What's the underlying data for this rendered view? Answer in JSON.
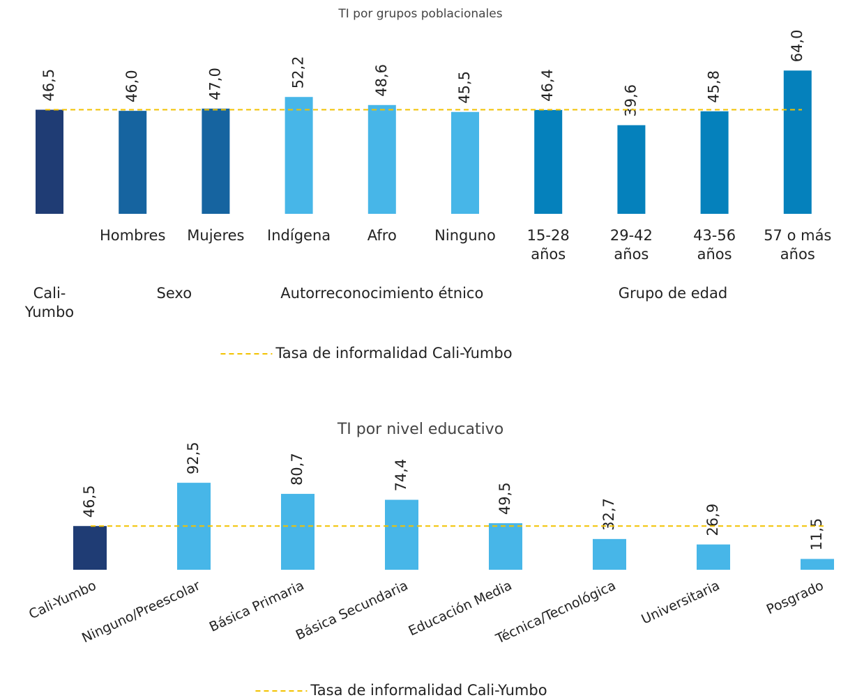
{
  "chart_data": [
    {
      "type": "bar",
      "title": "TI por grupos poblacionales",
      "categories": [
        null,
        "Hombres",
        "Mujeres",
        "Indígena",
        "Afro",
        "Ninguno",
        "15-28 años",
        "29-42 años",
        "43-56 años",
        "57 o más años"
      ],
      "groups": [
        {
          "label": "Cali-Yumbo",
          "span": 1
        },
        {
          "label": "Sexo",
          "span": 2
        },
        {
          "label": "Autorreconocimiento étnico",
          "span": 3
        },
        {
          "label": "Grupo de edad",
          "span": 4
        }
      ],
      "values": [
        46.5,
        46.0,
        47.0,
        52.2,
        48.6,
        45.5,
        46.4,
        39.6,
        45.8,
        64.0
      ],
      "value_labels": [
        "46,5",
        "46,0",
        "47,0",
        "52,2",
        "48,6",
        "45,5",
        "46,4",
        "39,6",
        "45,8",
        "64,0"
      ],
      "colors": [
        "#1f3c74",
        "#1664a0",
        "#1664a0",
        "#47b6e8",
        "#47b6e8",
        "#47b6e8",
        "#0581bc",
        "#0581bc",
        "#0581bc",
        "#0581bc"
      ],
      "reference_line": {
        "value": 46.5,
        "label": "Tasa de informalidad Cali-Yumbo",
        "color": "#f2c200"
      },
      "ylim": [
        0,
        70
      ]
    },
    {
      "type": "bar",
      "title": "TI por nivel educativo",
      "categories": [
        "Cali-Yumbo",
        "Ninguno/Preescolar",
        "Básica Primaria",
        "Básica Secundaria",
        "Educación Media",
        "Técnica/Tecnológica",
        "Universitaria",
        "Posgrado"
      ],
      "values": [
        46.5,
        92.5,
        80.7,
        74.4,
        49.5,
        32.7,
        26.9,
        11.5
      ],
      "value_labels": [
        "46,5",
        "92,5",
        "80,7",
        "74,4",
        "49,5",
        "32,7",
        "26,9",
        "11,5"
      ],
      "colors": [
        "#1f3c74",
        "#47b6e8",
        "#47b6e8",
        "#47b6e8",
        "#47b6e8",
        "#47b6e8",
        "#47b6e8",
        "#47b6e8"
      ],
      "reference_line": {
        "value": 46.5,
        "label": "Tasa de informalidad Cali-Yumbo",
        "color": "#f2c200"
      },
      "ylim": [
        0,
        100
      ]
    }
  ]
}
